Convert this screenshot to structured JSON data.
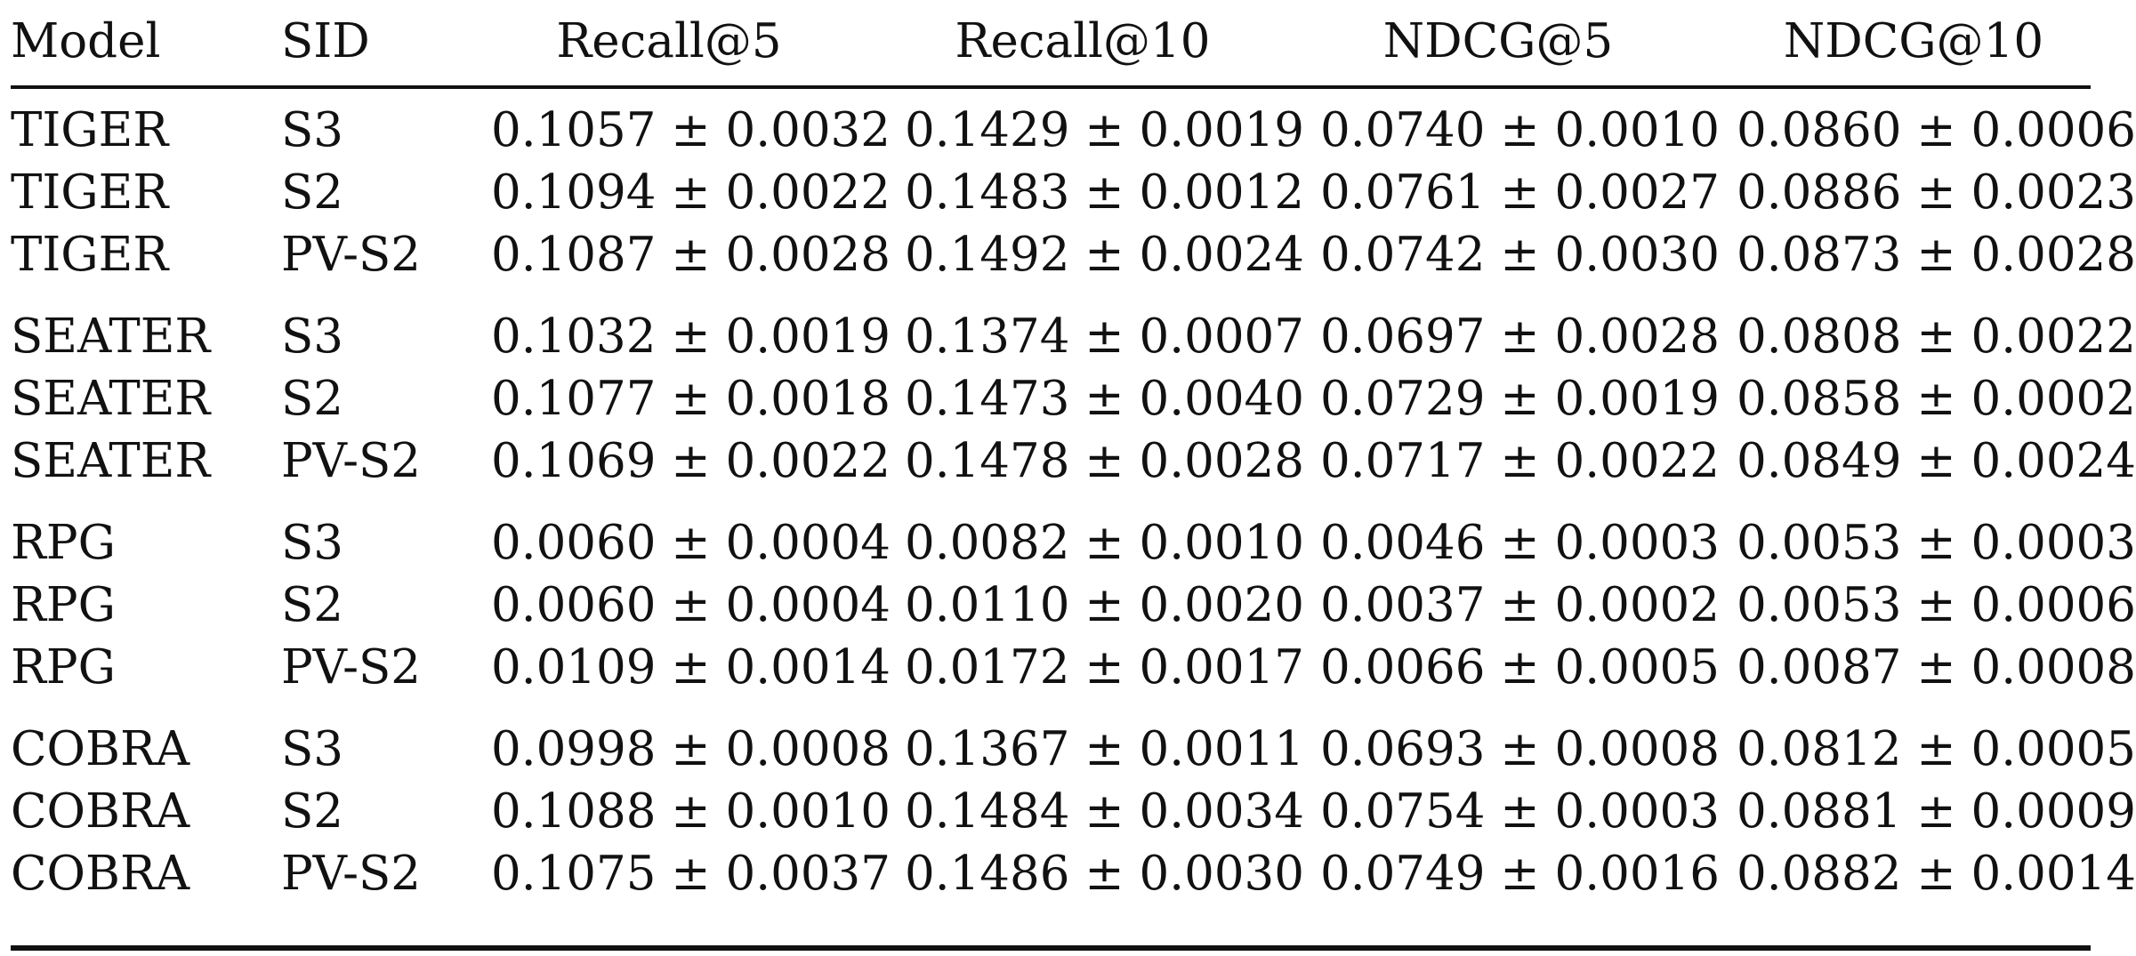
{
  "table": {
    "headers": [
      "Model",
      "SID",
      "Recall@5",
      "Recall@10",
      "NDCG@5",
      "NDCG@10"
    ],
    "rows": [
      [
        "TIGER",
        "S3",
        "0.1057 ± 0.0032",
        "0.1429 ± 0.0019",
        "0.0740 ± 0.0010",
        "0.0860 ± 0.0006"
      ],
      [
        "TIGER",
        "S2",
        "0.1094 ± 0.0022",
        "0.1483 ± 0.0012",
        "0.0761 ± 0.0027",
        "0.0886 ± 0.0023"
      ],
      [
        "TIGER",
        "PV-S2",
        "0.1087 ± 0.0028",
        "0.1492 ± 0.0024",
        "0.0742 ± 0.0030",
        "0.0873 ± 0.0028"
      ],
      [
        "SEATER",
        "S3",
        "0.1032 ± 0.0019",
        "0.1374 ± 0.0007",
        "0.0697 ± 0.0028",
        "0.0808 ± 0.0022"
      ],
      [
        "SEATER",
        "S2",
        "0.1077 ± 0.0018",
        "0.1473 ± 0.0040",
        "0.0729 ± 0.0019",
        "0.0858 ± 0.0002"
      ],
      [
        "SEATER",
        "PV-S2",
        "0.1069 ± 0.0022",
        "0.1478 ± 0.0028",
        "0.0717 ± 0.0022",
        "0.0849 ± 0.0024"
      ],
      [
        "RPG",
        "S3",
        "0.0060 ± 0.0004",
        "0.0082 ± 0.0010",
        "0.0046 ± 0.0003",
        "0.0053 ± 0.0003"
      ],
      [
        "RPG",
        "S2",
        "0.0060 ± 0.0004",
        "0.0110 ± 0.0020",
        "0.0037 ± 0.0002",
        "0.0053 ± 0.0006"
      ],
      [
        "RPG",
        "PV-S2",
        "0.0109 ± 0.0014",
        "0.0172 ± 0.0017",
        "0.0066 ± 0.0005",
        "0.0087 ± 0.0008"
      ],
      [
        "COBRA",
        "S3",
        "0.0998 ± 0.0008",
        "0.1367 ± 0.0011",
        "0.0693 ± 0.0008",
        "0.0812 ± 0.0005"
      ],
      [
        "COBRA",
        "S2",
        "0.1088 ± 0.0010",
        "0.1484 ± 0.0034",
        "0.0754 ± 0.0003",
        "0.0881 ± 0.0009"
      ],
      [
        "COBRA",
        "PV-S2",
        "0.1075 ± 0.0037",
        "0.1486 ± 0.0030",
        "0.0749 ± 0.0016",
        "0.0882 ± 0.0014"
      ]
    ]
  }
}
